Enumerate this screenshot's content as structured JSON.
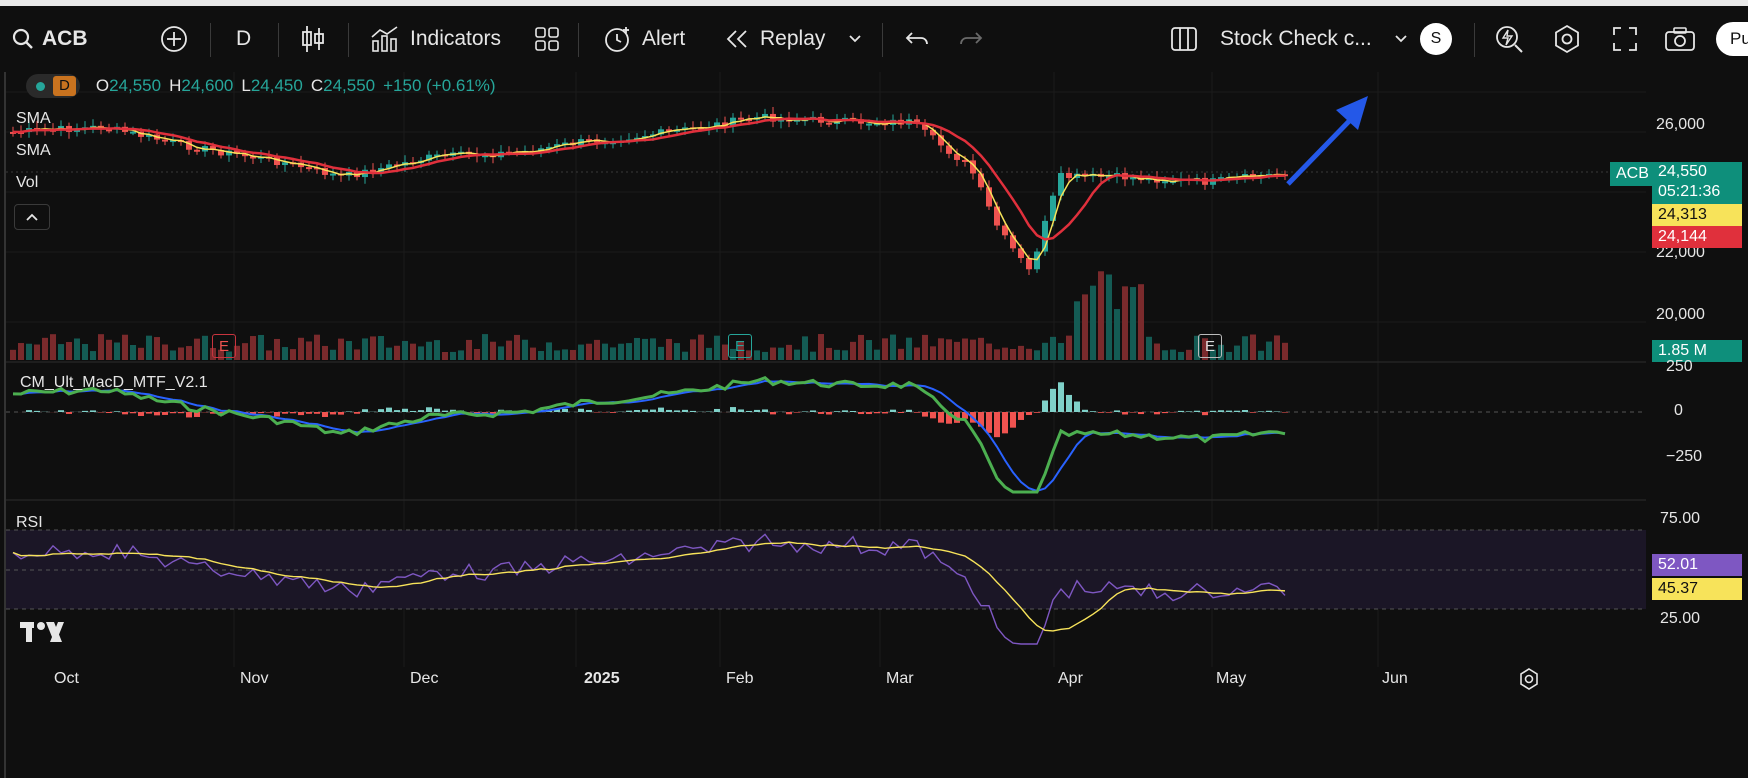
{
  "toolbar": {
    "symbol": "ACB",
    "interval": "D",
    "indicators_label": "Indicators",
    "alert_label": "Alert",
    "replay_label": "Replay",
    "layout_name": "Stock Check c...",
    "avatar_letter": "S",
    "publish_partial": "Pu"
  },
  "legend": {
    "interval_badge": "D",
    "o_label": "O",
    "o_value": "24,550",
    "h_label": "H",
    "h_value": "24,600",
    "l_label": "L",
    "l_value": "24,450",
    "c_label": "C",
    "c_value": "24,550",
    "change": "+150 (+0.61%)",
    "sma1": "SMA",
    "sma2": "SMA",
    "vol": "Vol"
  },
  "price_axis": {
    "labels": [
      "26,000",
      "22,000",
      "20,000"
    ]
  },
  "price_badges": {
    "symbol": "ACB",
    "last": "24,550",
    "countdown": "05:21:36",
    "sma_fast": "24,313",
    "sma_slow": "24,144",
    "volume": "1.85 M"
  },
  "macd": {
    "title": "CM_Ult_MacD_MTF_V2.1",
    "axis": [
      "250",
      "0",
      "−250"
    ]
  },
  "rsi": {
    "title": "RSI",
    "axis": [
      "75.00",
      "25.00"
    ],
    "value": "52.01",
    "ma_value": "45.37"
  },
  "time_axis": [
    "Oct",
    "Nov",
    "Dec",
    "2025",
    "Feb",
    "Mar",
    "Apr",
    "May",
    "Jun"
  ],
  "earnings_markers": [
    "E",
    "E",
    "E"
  ],
  "colors": {
    "up": "#26a69a",
    "down": "#ef5350",
    "sma_fast": "#f7e35a",
    "sma_slow": "#e0303c",
    "rsi": "#7e57c2",
    "arrow": "#2458e8"
  },
  "icons": [
    "search-icon",
    "plus-circle-icon",
    "candles-icon",
    "indicators-icon",
    "grid-icon",
    "alarm-icon",
    "replay-icon",
    "undo-icon",
    "redo-icon",
    "layout-icon",
    "lightning-icon",
    "settings-icon",
    "fullscreen-icon",
    "camera-icon",
    "tradingview-logo",
    "settings-gear-icon"
  ]
}
